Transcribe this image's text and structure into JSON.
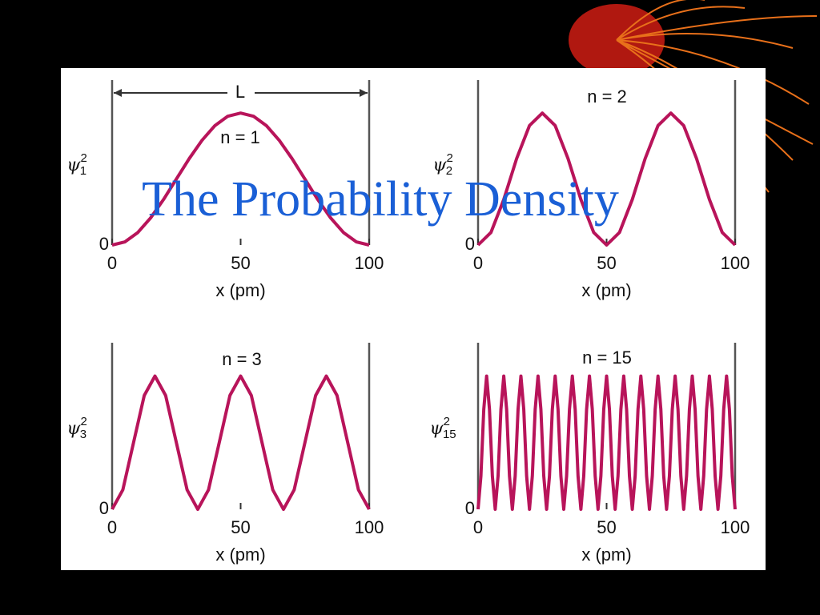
{
  "slide": {
    "title": "The Probability Density"
  },
  "chart_data": [
    {
      "type": "line",
      "annotation": "n = 1",
      "span_label": "L",
      "ylabel": {
        "text": "ψ",
        "superscript": "2",
        "subscript": "1"
      },
      "xlabel": "x (pm)",
      "color": "#b8145a",
      "xlim": [
        0,
        100
      ],
      "xticks": [
        0,
        50,
        100
      ],
      "ylim": [
        0,
        1.25
      ],
      "yticks": [
        0
      ],
      "x": [
        0,
        5,
        10,
        15,
        20,
        25,
        30,
        35,
        40,
        45,
        50,
        55,
        60,
        65,
        70,
        75,
        80,
        85,
        90,
        95,
        100
      ],
      "values": [
        0,
        0.024,
        0.095,
        0.206,
        0.345,
        0.5,
        0.655,
        0.794,
        0.905,
        0.976,
        1,
        0.976,
        0.905,
        0.794,
        0.655,
        0.5,
        0.345,
        0.206,
        0.095,
        0.024,
        0
      ]
    },
    {
      "type": "line",
      "annotation": "n = 2",
      "ylabel": {
        "text": "ψ",
        "superscript": "2",
        "subscript": "2"
      },
      "xlabel": "x (pm)",
      "color": "#b8145a",
      "xlim": [
        0,
        100
      ],
      "xticks": [
        0,
        50,
        100
      ],
      "ylim": [
        0,
        1.25
      ],
      "yticks": [
        0
      ],
      "x": [
        0,
        5,
        10,
        15,
        20,
        25,
        30,
        35,
        40,
        45,
        50,
        55,
        60,
        65,
        70,
        75,
        80,
        85,
        90,
        95,
        100
      ],
      "values": [
        0,
        0.095,
        0.345,
        0.655,
        0.905,
        1,
        0.905,
        0.655,
        0.345,
        0.095,
        0,
        0.095,
        0.345,
        0.655,
        0.905,
        1,
        0.905,
        0.655,
        0.345,
        0.095,
        0
      ]
    },
    {
      "type": "line",
      "annotation": "n = 3",
      "ylabel": {
        "text": "ψ",
        "superscript": "2",
        "subscript": "3"
      },
      "xlabel": "x (pm)",
      "color": "#b8145a",
      "xlim": [
        0,
        100
      ],
      "xticks": [
        0,
        50,
        100
      ],
      "ylim": [
        0,
        1.25
      ],
      "yticks": [
        0
      ],
      "x": [
        0,
        4.17,
        8.33,
        12.5,
        16.67,
        20.83,
        25,
        29.17,
        33.33,
        37.5,
        41.67,
        45.83,
        50,
        54.17,
        58.33,
        62.5,
        66.67,
        70.83,
        75,
        79.17,
        83.33,
        87.5,
        91.67,
        95.83,
        100
      ],
      "values": [
        0,
        0.146,
        0.5,
        0.854,
        1,
        0.854,
        0.5,
        0.146,
        0,
        0.146,
        0.5,
        0.854,
        1,
        0.854,
        0.5,
        0.146,
        0,
        0.146,
        0.5,
        0.854,
        1,
        0.854,
        0.5,
        0.146,
        0
      ]
    },
    {
      "type": "line",
      "annotation": "n = 15",
      "ylabel": {
        "text": "ψ",
        "superscript": "2",
        "subscript": "15"
      },
      "xlabel": "x (pm)",
      "color": "#b8145a",
      "xlim": [
        0,
        100
      ],
      "xticks": [
        0,
        50,
        100
      ],
      "ylim": [
        0,
        1.25
      ],
      "yticks": [
        0
      ],
      "x": [
        0,
        1.11,
        2.22,
        3.33,
        4.44,
        5.56,
        6.67,
        7.78,
        8.89,
        10,
        11.11,
        12.22,
        13.33,
        14.44,
        15.56,
        16.67,
        17.78,
        18.89,
        20,
        21.11,
        22.22,
        23.33,
        24.44,
        25.56,
        26.67,
        27.78,
        28.89,
        30,
        31.11,
        32.22,
        33.33,
        34.44,
        35.56,
        36.67,
        37.78,
        38.89,
        40,
        41.11,
        42.22,
        43.33,
        44.44,
        45.56,
        46.67,
        47.78,
        48.89,
        50,
        51.11,
        52.22,
        53.33,
        54.44,
        55.56,
        56.67,
        57.78,
        58.89,
        60,
        61.11,
        62.22,
        63.33,
        64.44,
        65.56,
        66.67,
        67.78,
        68.89,
        70,
        71.11,
        72.22,
        73.33,
        74.44,
        75.56,
        76.67,
        77.78,
        78.89,
        80,
        81.11,
        82.22,
        83.33,
        84.44,
        85.56,
        86.67,
        87.78,
        88.89,
        90,
        91.11,
        92.22,
        93.33,
        94.44,
        95.56,
        96.67,
        97.78,
        98.89,
        100
      ],
      "values": [
        0,
        0.25,
        0.75,
        1,
        0.75,
        0.25,
        0,
        0.25,
        0.75,
        1,
        0.75,
        0.25,
        0,
        0.25,
        0.75,
        1,
        0.75,
        0.25,
        0,
        0.25,
        0.75,
        1,
        0.75,
        0.25,
        0,
        0.25,
        0.75,
        1,
        0.75,
        0.25,
        0,
        0.25,
        0.75,
        1,
        0.75,
        0.25,
        0,
        0.25,
        0.75,
        1,
        0.75,
        0.25,
        0,
        0.25,
        0.75,
        1,
        0.75,
        0.25,
        0,
        0.25,
        0.75,
        1,
        0.75,
        0.25,
        0,
        0.25,
        0.75,
        1,
        0.75,
        0.25,
        0,
        0.25,
        0.75,
        1,
        0.75,
        0.25,
        0,
        0.25,
        0.75,
        1,
        0.75,
        0.25,
        0,
        0.25,
        0.75,
        1,
        0.75,
        0.25,
        0,
        0.25,
        0.75,
        1,
        0.75,
        0.25,
        0,
        0.25,
        0.75,
        1,
        0.75,
        0.25,
        0
      ]
    }
  ]
}
